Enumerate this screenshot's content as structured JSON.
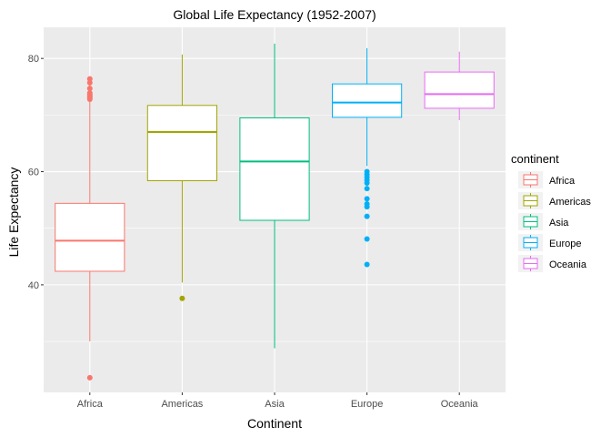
{
  "chart_data": {
    "type": "boxplot",
    "title": "Global Life Expectancy (1952-2007)",
    "xlabel": "Continent",
    "ylabel": "Life Expectancy",
    "categories": [
      "Africa",
      "Americas",
      "Asia",
      "Europe",
      "Oceania"
    ],
    "ylim": [
      21.0,
      85.5
    ],
    "yticks": [
      40,
      60,
      80
    ],
    "grid": true,
    "legend": {
      "title": "continent",
      "position": "right"
    },
    "series": [
      {
        "name": "Africa",
        "color": "#F8766D",
        "min": 30.0,
        "q1": 42.4,
        "median": 47.8,
        "q3": 54.4,
        "max": 76.4,
        "outliers": [
          23.6,
          72.8,
          73.0,
          73.2,
          73.4,
          73.6,
          73.9,
          74.7,
          75.7,
          76.4
        ]
      },
      {
        "name": "Americas",
        "color": "#A3A500",
        "min": 40.4,
        "q1": 58.4,
        "median": 67.0,
        "q3": 71.7,
        "max": 80.7,
        "outliers": [
          37.6
        ]
      },
      {
        "name": "Asia",
        "color": "#00BF7D",
        "min": 28.8,
        "q1": 51.4,
        "median": 61.8,
        "q3": 69.5,
        "max": 82.6,
        "outliers": []
      },
      {
        "name": "Europe",
        "color": "#00B0F6",
        "min": 61.0,
        "q1": 69.6,
        "median": 72.2,
        "q3": 75.5,
        "max": 81.8,
        "outliers": [
          43.6,
          48.1,
          52.1,
          53.8,
          54.3,
          55.2,
          57.0,
          58.0,
          58.5,
          59.0,
          59.5,
          60.0
        ]
      },
      {
        "name": "Oceania",
        "color": "#E76BF3",
        "min": 69.1,
        "q1": 71.2,
        "median": 73.7,
        "q3": 77.6,
        "max": 81.2,
        "outliers": []
      }
    ]
  }
}
